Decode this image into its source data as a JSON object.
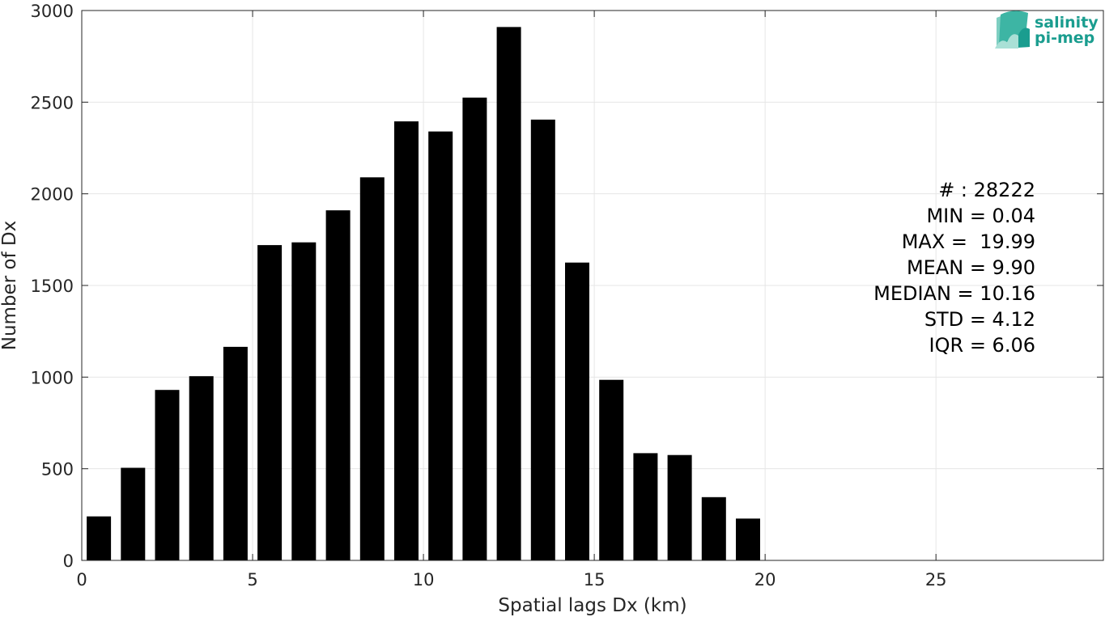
{
  "chart_data": {
    "type": "bar",
    "title": "",
    "xlabel": "Spatial lags Dx (km)",
    "ylabel": "Number of Dx",
    "xlim": [
      0,
      29.9
    ],
    "ylim": [
      0,
      3000
    ],
    "grid": true,
    "x_ticks": [
      0,
      5,
      10,
      15,
      20,
      25
    ],
    "y_ticks": [
      0,
      500,
      1000,
      1500,
      2000,
      2500,
      3000
    ],
    "x": [
      0.5,
      1.5,
      2.5,
      3.5,
      4.5,
      5.5,
      6.5,
      7.5,
      8.5,
      9.5,
      10.5,
      11.5,
      12.5,
      13.5,
      14.5,
      15.5,
      16.5,
      17.5,
      18.5,
      19.5
    ],
    "values": [
      240,
      505,
      930,
      1005,
      1165,
      1720,
      1735,
      1910,
      2090,
      2395,
      2340,
      2525,
      2910,
      2405,
      1625,
      985,
      585,
      575,
      345,
      228
    ],
    "bar_color": "#000000",
    "stats": [
      "# : 28222",
      "MIN = 0.04",
      "MAX =  19.99",
      "MEAN = 9.90",
      "MEDIAN = 10.16",
      "STD = 4.12",
      "IQR = 6.06"
    ]
  },
  "logo": {
    "line1": "salinity",
    "line2": "pi-mep",
    "color": "#1a9d8f"
  }
}
